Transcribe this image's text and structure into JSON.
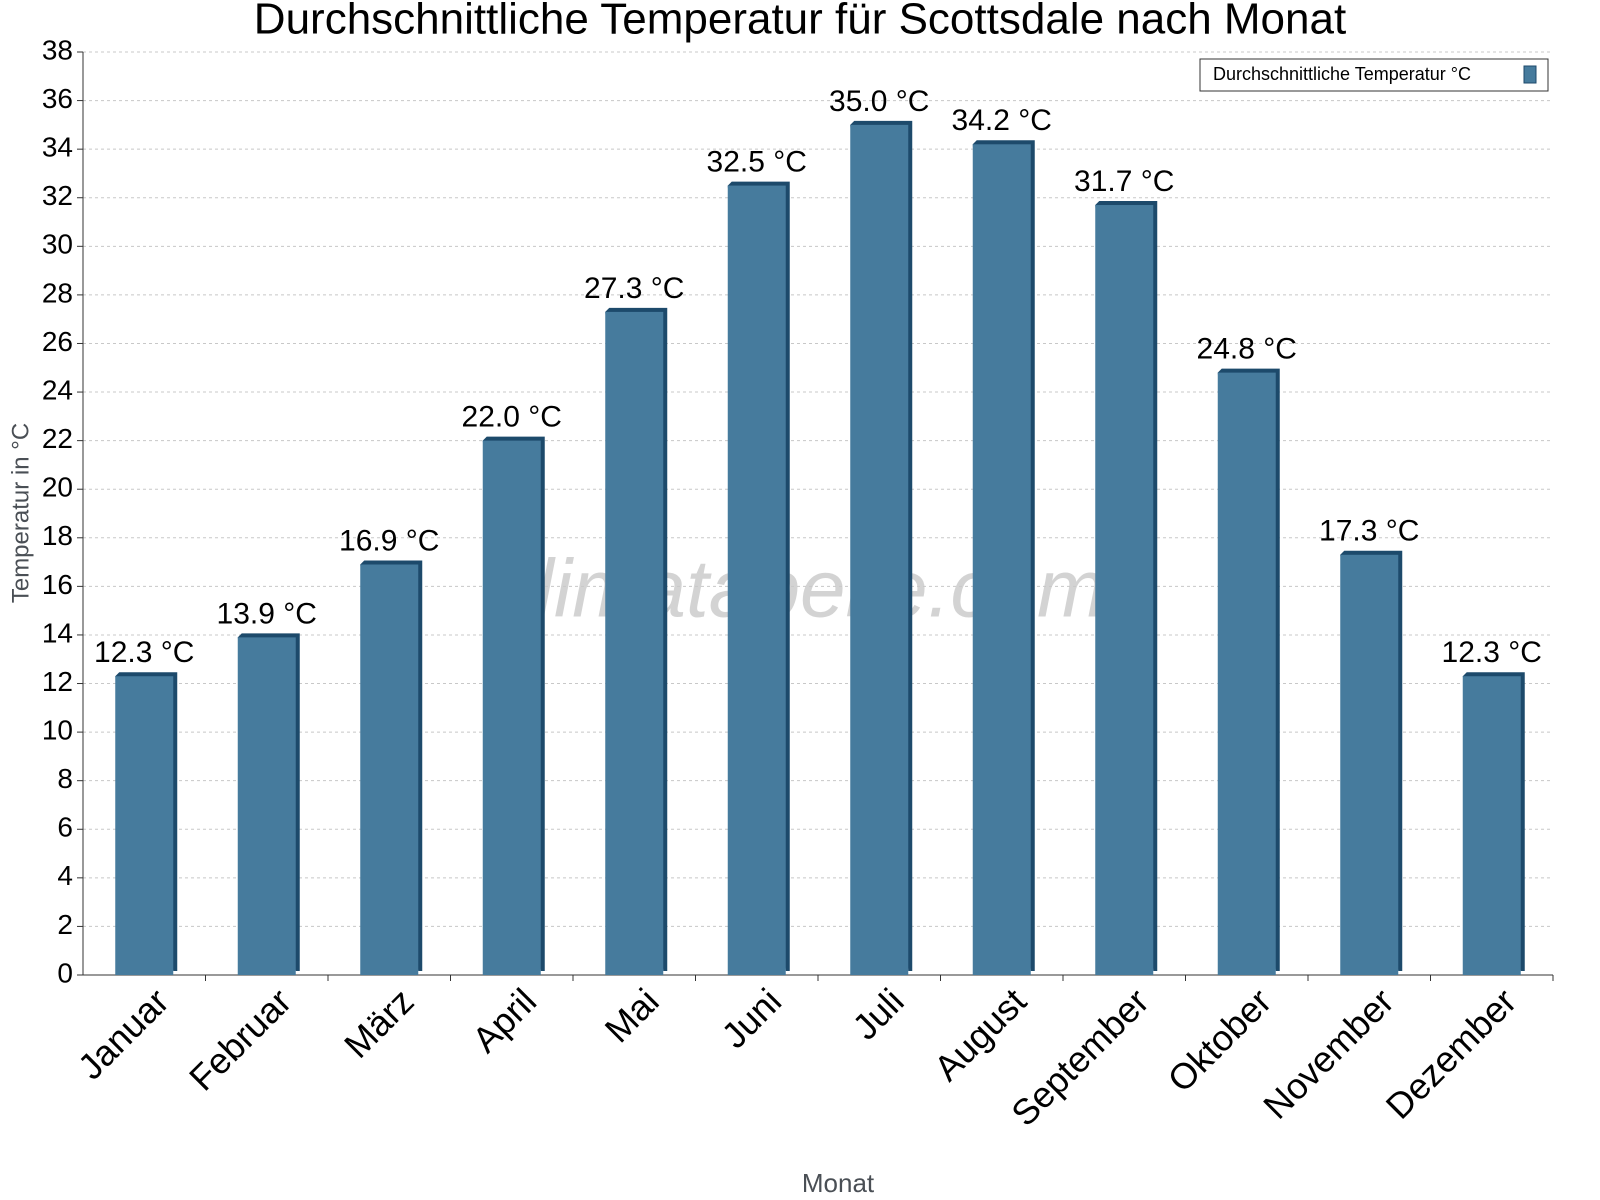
{
  "chart_data": {
    "type": "bar",
    "title": "Durchschnittliche Temperatur für Scottsdale nach Monat",
    "x_label": "Monat",
    "y_label": "Temperatur in °C",
    "watermark": "klimatabelle.com",
    "categories": [
      "Januar",
      "Februar",
      "März",
      "April",
      "Mai",
      "Juni",
      "Juli",
      "August",
      "September",
      "Oktober",
      "November",
      "Dezember"
    ],
    "series": [
      {
        "name": "Durchschnittliche Temperatur °C",
        "color": "#467b9d",
        "values": [
          12.3,
          13.9,
          16.9,
          22.0,
          27.3,
          32.5,
          35.0,
          34.2,
          31.7,
          24.8,
          17.3,
          12.3
        ],
        "value_labels": [
          "12.3 °C",
          "13.9 °C",
          "16.9 °C",
          "22.0 °C",
          "27.3 °C",
          "32.5 °C",
          "35.0 °C",
          "34.2 °C",
          "31.7 °C",
          "24.8 °C",
          "17.3 °C",
          "12.3 °C"
        ]
      }
    ],
    "ylim": [
      0,
      38
    ],
    "yticks": [
      0,
      2,
      4,
      6,
      8,
      10,
      12,
      14,
      16,
      18,
      20,
      22,
      24,
      26,
      28,
      30,
      32,
      34,
      36,
      38
    ],
    "grid": true,
    "legend": "top-right"
  }
}
